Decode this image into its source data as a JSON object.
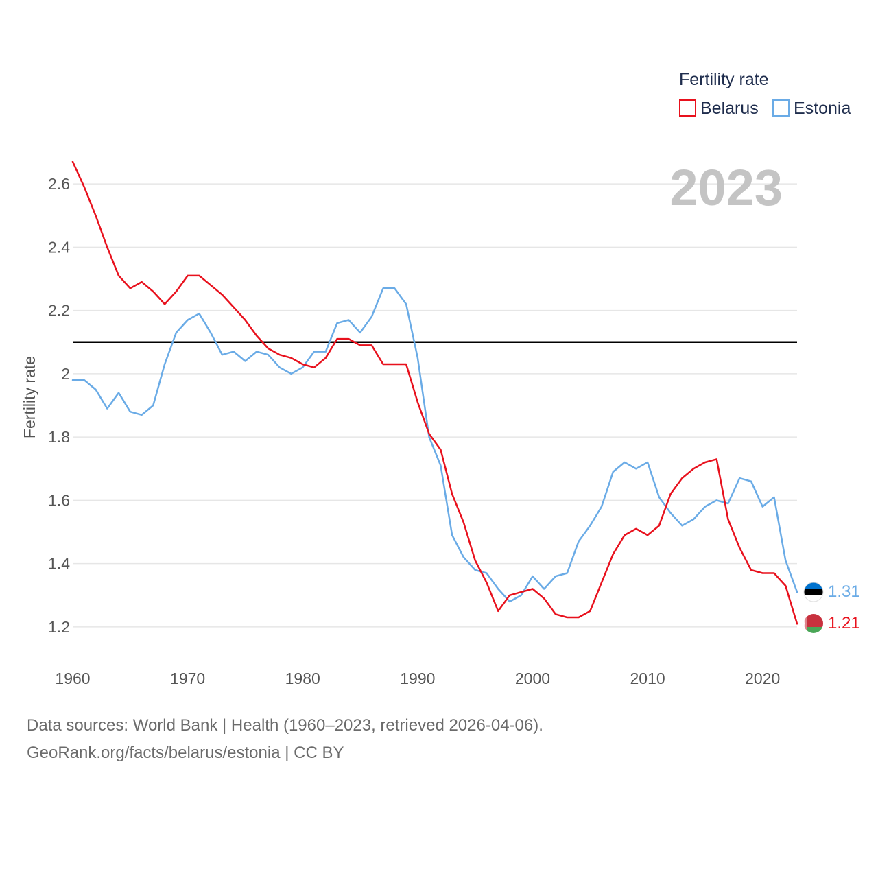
{
  "chart_data": {
    "type": "line",
    "ylabel": "Fertility rate",
    "xlim": [
      1960,
      2023
    ],
    "ylim": [
      1.1,
      2.7
    ],
    "x_ticks": [
      1960,
      1970,
      1980,
      1990,
      2000,
      2010,
      2020
    ],
    "y_ticks": [
      1.2,
      1.4,
      1.6,
      1.8,
      2.0,
      2.2,
      2.4,
      2.6
    ],
    "y_tick_labels": [
      "1.2",
      "1.4",
      "1.6",
      "1.8",
      "2",
      "2.2",
      "2.4",
      "2.6"
    ],
    "reference_line": 2.1,
    "year_label": "2023",
    "legend": {
      "title": "Fertility rate",
      "position": "top-right"
    },
    "x": [
      1960,
      1961,
      1962,
      1963,
      1964,
      1965,
      1966,
      1967,
      1968,
      1969,
      1970,
      1971,
      1972,
      1973,
      1974,
      1975,
      1976,
      1977,
      1978,
      1979,
      1980,
      1981,
      1982,
      1983,
      1984,
      1985,
      1986,
      1987,
      1988,
      1989,
      1990,
      1991,
      1992,
      1993,
      1994,
      1995,
      1996,
      1997,
      1998,
      1999,
      2000,
      2001,
      2002,
      2003,
      2004,
      2005,
      2006,
      2007,
      2008,
      2009,
      2010,
      2011,
      2012,
      2013,
      2014,
      2015,
      2016,
      2017,
      2018,
      2019,
      2020,
      2021,
      2022,
      2023
    ],
    "series": [
      {
        "name": "Belarus",
        "color": "#e8111d",
        "end_label": "1.21",
        "flag": "belarus-flag-icon",
        "values": [
          2.67,
          2.59,
          2.5,
          2.4,
          2.31,
          2.27,
          2.29,
          2.26,
          2.22,
          2.26,
          2.31,
          2.31,
          2.28,
          2.25,
          2.21,
          2.17,
          2.12,
          2.08,
          2.06,
          2.05,
          2.03,
          2.02,
          2.05,
          2.11,
          2.11,
          2.09,
          2.09,
          2.03,
          2.03,
          2.03,
          1.91,
          1.81,
          1.76,
          1.62,
          1.53,
          1.41,
          1.34,
          1.25,
          1.3,
          1.31,
          1.32,
          1.29,
          1.24,
          1.23,
          1.23,
          1.25,
          1.34,
          1.43,
          1.49,
          1.51,
          1.49,
          1.52,
          1.62,
          1.67,
          1.7,
          1.72,
          1.73,
          1.54,
          1.45,
          1.38,
          1.37,
          1.37,
          1.33,
          1.21
        ]
      },
      {
        "name": "Estonia",
        "color": "#6aabe6",
        "end_label": "1.31",
        "flag": "estonia-flag-icon",
        "values": [
          1.98,
          1.98,
          1.95,
          1.89,
          1.94,
          1.88,
          1.87,
          1.9,
          2.03,
          2.13,
          2.17,
          2.19,
          2.13,
          2.06,
          2.07,
          2.04,
          2.07,
          2.06,
          2.02,
          2.0,
          2.02,
          2.07,
          2.07,
          2.16,
          2.17,
          2.13,
          2.18,
          2.27,
          2.27,
          2.22,
          2.05,
          1.8,
          1.71,
          1.49,
          1.42,
          1.38,
          1.37,
          1.32,
          1.28,
          1.3,
          1.36,
          1.32,
          1.36,
          1.37,
          1.47,
          1.52,
          1.58,
          1.69,
          1.72,
          1.7,
          1.72,
          1.61,
          1.56,
          1.52,
          1.54,
          1.58,
          1.6,
          1.59,
          1.67,
          1.66,
          1.58,
          1.61,
          1.41,
          1.31
        ]
      }
    ]
  },
  "footer": {
    "line1": "Data sources: World Bank | Health (1960–2023, retrieved 2026-04-06).",
    "line2": "GeoRank.org/facts/belarus/estonia | CC BY"
  }
}
